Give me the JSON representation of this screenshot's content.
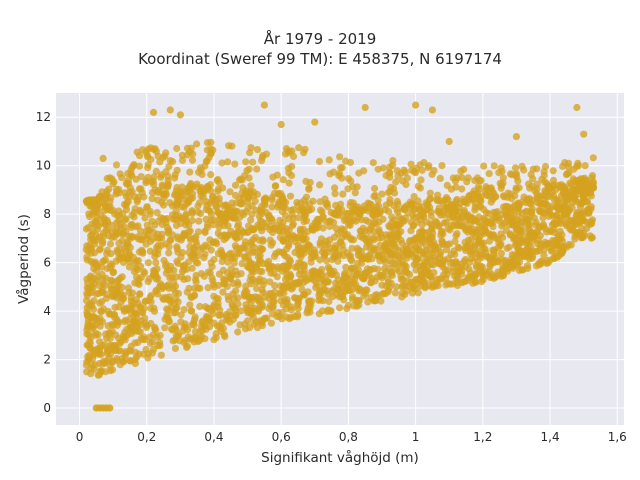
{
  "chart_data": {
    "type": "scatter",
    "title_lines": [
      "År 1979 - 2019",
      "Koordinat (Sweref 99 TM): E 458375, N 6197174"
    ],
    "xlabel": "Signifikant våghöjd (m)",
    "ylabel": "Vågperiod (s)",
    "xlim": [
      -0.07,
      1.62
    ],
    "ylim": [
      -0.7,
      13.0
    ],
    "x_ticks": [
      0,
      0.2,
      0.4,
      0.6,
      0.8,
      1,
      1.2,
      1.4,
      1.6
    ],
    "x_tick_labels": [
      "0",
      "0,2",
      "0,4",
      "0,6",
      "0,8",
      "1",
      "1,2",
      "1,4",
      "1,6"
    ],
    "y_ticks": [
      0,
      2,
      4,
      6,
      8,
      10,
      12
    ],
    "y_tick_labels": [
      "0",
      "2",
      "4",
      "6",
      "8",
      "10",
      "12"
    ],
    "marker_color": "#D4A21F",
    "background_color": "#E8E8F0",
    "grid": true,
    "point_cloud": {
      "x_range": [
        0.02,
        1.53
      ],
      "lower_envelope": [
        [
          0.05,
          1.3
        ],
        [
          0.1,
          1.5
        ],
        [
          0.2,
          2.0
        ],
        [
          0.4,
          2.8
        ],
        [
          0.6,
          3.6
        ],
        [
          0.8,
          4.1
        ],
        [
          1.0,
          4.7
        ],
        [
          1.2,
          5.2
        ],
        [
          1.4,
          6.0
        ],
        [
          1.5,
          7.0
        ]
      ],
      "upper_envelope": [
        [
          0.05,
          8.5
        ],
        [
          0.1,
          10.0
        ],
        [
          0.2,
          10.8
        ],
        [
          0.4,
          11.0
        ],
        [
          0.6,
          11.0
        ],
        [
          0.8,
          10.3
        ],
        [
          1.0,
          10.2
        ],
        [
          1.2,
          10.0
        ],
        [
          1.4,
          10.0
        ],
        [
          1.52,
          10.5
        ]
      ],
      "dense_core_upper": [
        [
          0.05,
          8.6
        ],
        [
          0.2,
          9.4
        ],
        [
          0.4,
          9.2
        ],
        [
          0.6,
          8.7
        ],
        [
          0.8,
          8.4
        ],
        [
          1.0,
          8.6
        ],
        [
          1.2,
          8.8
        ],
        [
          1.4,
          9.2
        ],
        [
          1.52,
          9.6
        ]
      ],
      "zero_period_points": [
        [
          0.05,
          0
        ],
        [
          0.06,
          0
        ],
        [
          0.07,
          0
        ],
        [
          0.08,
          0
        ],
        [
          0.09,
          0
        ]
      ],
      "outliers": [
        [
          0.22,
          12.2
        ],
        [
          0.27,
          12.3
        ],
        [
          0.3,
          12.1
        ],
        [
          0.55,
          12.5
        ],
        [
          0.6,
          11.7
        ],
        [
          0.85,
          12.4
        ],
        [
          1.0,
          12.5
        ],
        [
          1.05,
          12.3
        ],
        [
          1.1,
          11.0
        ],
        [
          1.48,
          12.4
        ],
        [
          1.5,
          11.3
        ],
        [
          1.3,
          11.2
        ],
        [
          0.7,
          11.8
        ],
        [
          0.09,
          9.5
        ],
        [
          0.07,
          10.3
        ]
      ]
    }
  }
}
